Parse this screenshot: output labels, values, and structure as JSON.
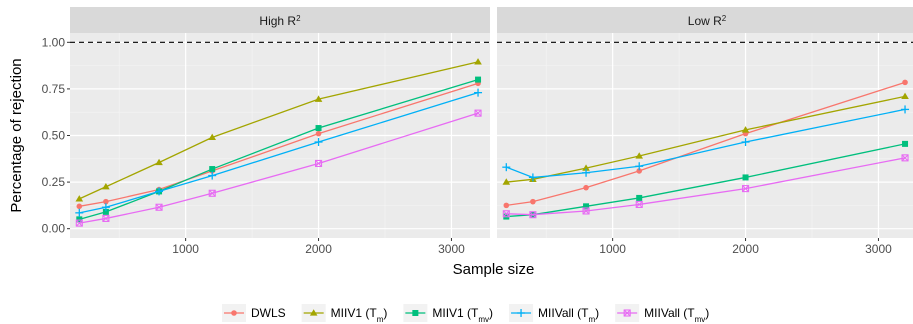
{
  "chart_data": {
    "type": "line",
    "xlabel": "Sample size",
    "ylabel": "Percentage of rejection",
    "xlim": [
      130,
      3290
    ],
    "ylim": [
      -0.05,
      1.05
    ],
    "x_ticks": [
      1000,
      2000,
      3000
    ],
    "y_ticks": [
      0.0,
      0.25,
      0.5,
      0.75,
      1.0
    ],
    "y_tick_labels": [
      "0.00",
      "0.25",
      "0.50",
      "0.75",
      "1.00"
    ],
    "reference_line": 1.0,
    "x": [
      200,
      400,
      800,
      1200,
      2000,
      3200
    ],
    "legend_position": "bottom",
    "series_styles": [
      {
        "color": "#F8766D",
        "marker": "circle"
      },
      {
        "color": "#A3A500",
        "marker": "triangle"
      },
      {
        "color": "#00BF7D",
        "marker": "square"
      },
      {
        "color": "#00B0F6",
        "marker": "plus"
      },
      {
        "color": "#E76BF3",
        "marker": "boxcross"
      }
    ],
    "legend": [
      {
        "main": "DWLS",
        "sub": "",
        "tail": ""
      },
      {
        "main": "MIIV1 (T",
        "sub": "m",
        "tail": ")"
      },
      {
        "main": "MIIV1 (T",
        "sub": "mv",
        "tail": ")"
      },
      {
        "main": "MIIVall (T",
        "sub": "m",
        "tail": ")"
      },
      {
        "main": "MIIVall (T",
        "sub": "mv",
        "tail": ")"
      }
    ],
    "panels": [
      {
        "title": {
          "main": "High R",
          "sup": "2"
        },
        "series": [
          {
            "values": [
              0.12,
              0.145,
              0.21,
              0.31,
              0.51,
              0.78
            ]
          },
          {
            "values": [
              0.16,
              0.225,
              0.355,
              0.49,
              0.695,
              0.895
            ]
          },
          {
            "values": [
              0.05,
              0.09,
              0.2,
              0.32,
              0.54,
              0.8
            ]
          },
          {
            "values": [
              0.085,
              0.115,
              0.2,
              0.285,
              0.465,
              0.73
            ]
          },
          {
            "values": [
              0.03,
              0.055,
              0.115,
              0.19,
              0.35,
              0.62
            ]
          }
        ]
      },
      {
        "title": {
          "main": "Low R",
          "sup": "2"
        },
        "series": [
          {
            "values": [
              0.125,
              0.145,
              0.22,
              0.31,
              0.51,
              0.785
            ]
          },
          {
            "values": [
              0.25,
              0.265,
              0.325,
              0.39,
              0.53,
              0.71
            ]
          },
          {
            "values": [
              0.065,
              0.075,
              0.12,
              0.165,
              0.275,
              0.455
            ]
          },
          {
            "values": [
              0.33,
              0.275,
              0.3,
              0.335,
              0.465,
              0.64
            ]
          },
          {
            "values": [
              0.08,
              0.075,
              0.095,
              0.13,
              0.215,
              0.38
            ]
          }
        ]
      }
    ]
  }
}
